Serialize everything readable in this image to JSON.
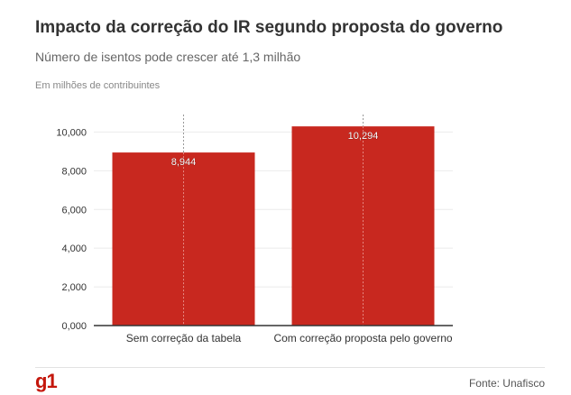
{
  "header": {
    "title": "Impacto da correção do IR segundo proposta do governo",
    "subtitle": "Número de isentos pode crescer até 1,3 milhão",
    "unit_note": "Em milhões de contribuintes"
  },
  "footer": {
    "logo": "g1",
    "source": "Fonte: Unafisco"
  },
  "colors": {
    "bar": "#c8281f",
    "axis": "#333333",
    "grid": "#ebebeb",
    "logo": "#c4170c"
  },
  "chart_data": {
    "type": "bar",
    "categories": [
      "Sem correção da tabela",
      "Com correção proposta pelo governo"
    ],
    "values": [
      8.944,
      10.294
    ],
    "value_labels": [
      "8,944",
      "10,294"
    ],
    "ylim": [
      0,
      11
    ],
    "yticks": [
      0,
      2,
      4,
      6,
      8,
      10
    ],
    "ytick_labels": [
      "0,000",
      "2,000",
      "4,000",
      "6,000",
      "8,000",
      "10,000"
    ],
    "grid": true,
    "legend": "none"
  }
}
